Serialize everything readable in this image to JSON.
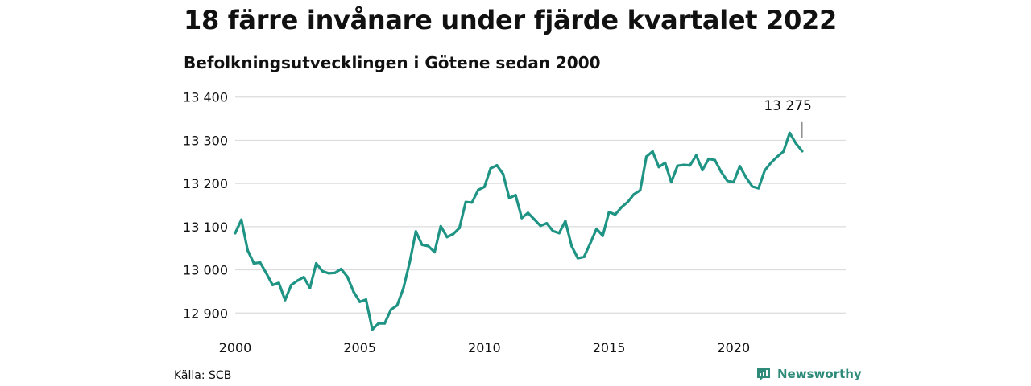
{
  "header": {
    "title": "18 färre invånare under fjärde kvartalet 2022",
    "subtitle": "Befolkningsutvecklingen i Götene sedan 2000"
  },
  "footer": {
    "source": "Källa: SCB",
    "brand": "Newsworthy"
  },
  "colors": {
    "line": "#1f9484",
    "grid": "#dcdcdc",
    "brand": "#2e8b7a"
  },
  "chart_data": {
    "type": "line",
    "title": "18 färre invånare under fjärde kvartalet 2022",
    "subtitle": "Befolkningsutvecklingen i Götene sedan 2000",
    "xlabel": "",
    "ylabel": "",
    "xlim": [
      2000,
      2024.5
    ],
    "ylim": [
      12880,
      13420
    ],
    "grid": true,
    "x_ticks": [
      {
        "value": 2000,
        "label": "2000"
      },
      {
        "value": 2005,
        "label": "2005"
      },
      {
        "value": 2010,
        "label": "2010"
      },
      {
        "value": 2015,
        "label": "2015"
      },
      {
        "value": 2020,
        "label": "2020"
      }
    ],
    "y_ticks": [
      {
        "value": 12900,
        "label": "12 900"
      },
      {
        "value": 13000,
        "label": "13 000"
      },
      {
        "value": 13100,
        "label": "13 100"
      },
      {
        "value": 13200,
        "label": "13 200"
      },
      {
        "value": 13300,
        "label": "13 300"
      },
      {
        "value": 13400,
        "label": "13 400"
      }
    ],
    "annotation": {
      "x": 2022.75,
      "y": 13275,
      "label": "13 275"
    },
    "series": [
      {
        "values": [
          [
            2000.0,
            13085
          ],
          [
            2000.25,
            13116
          ],
          [
            2000.5,
            13045
          ],
          [
            2000.75,
            13015
          ],
          [
            2001.0,
            13017
          ],
          [
            2001.25,
            12992
          ],
          [
            2001.5,
            12965
          ],
          [
            2001.75,
            12970
          ],
          [
            2002.0,
            12930
          ],
          [
            2002.25,
            12965
          ],
          [
            2002.5,
            12975
          ],
          [
            2002.75,
            12983
          ],
          [
            2003.0,
            12958
          ],
          [
            2003.25,
            13015
          ],
          [
            2003.5,
            12997
          ],
          [
            2003.75,
            12992
          ],
          [
            2004.0,
            12993
          ],
          [
            2004.25,
            13002
          ],
          [
            2004.5,
            12984
          ],
          [
            2004.75,
            12949
          ],
          [
            2005.0,
            12926
          ],
          [
            2005.25,
            12931
          ],
          [
            2005.5,
            12862
          ],
          [
            2005.75,
            12876
          ],
          [
            2006.0,
            12876
          ],
          [
            2006.25,
            12908
          ],
          [
            2006.5,
            12918
          ],
          [
            2006.75,
            12957
          ],
          [
            2007.0,
            13017
          ],
          [
            2007.25,
            13089
          ],
          [
            2007.5,
            13058
          ],
          [
            2007.75,
            13055
          ],
          [
            2008.0,
            13041
          ],
          [
            2008.25,
            13101
          ],
          [
            2008.5,
            13076
          ],
          [
            2008.75,
            13083
          ],
          [
            2009.0,
            13097
          ],
          [
            2009.25,
            13157
          ],
          [
            2009.5,
            13156
          ],
          [
            2009.75,
            13185
          ],
          [
            2010.0,
            13192
          ],
          [
            2010.25,
            13235
          ],
          [
            2010.5,
            13242
          ],
          [
            2010.75,
            13222
          ],
          [
            2011.0,
            13166
          ],
          [
            2011.25,
            13173
          ],
          [
            2011.5,
            13120
          ],
          [
            2011.75,
            13132
          ],
          [
            2012.0,
            13117
          ],
          [
            2012.25,
            13102
          ],
          [
            2012.5,
            13108
          ],
          [
            2012.75,
            13090
          ],
          [
            2013.0,
            13085
          ],
          [
            2013.25,
            13113
          ],
          [
            2013.5,
            13055
          ],
          [
            2013.75,
            13027
          ],
          [
            2014.0,
            13030
          ],
          [
            2014.25,
            13062
          ],
          [
            2014.5,
            13095
          ],
          [
            2014.75,
            13079
          ],
          [
            2015.0,
            13134
          ],
          [
            2015.25,
            13128
          ],
          [
            2015.5,
            13145
          ],
          [
            2015.75,
            13157
          ],
          [
            2016.0,
            13175
          ],
          [
            2016.25,
            13184
          ],
          [
            2016.5,
            13262
          ],
          [
            2016.75,
            13274
          ],
          [
            2017.0,
            13238
          ],
          [
            2017.25,
            13248
          ],
          [
            2017.5,
            13203
          ],
          [
            2017.75,
            13241
          ],
          [
            2018.0,
            13243
          ],
          [
            2018.25,
            13242
          ],
          [
            2018.5,
            13265
          ],
          [
            2018.75,
            13231
          ],
          [
            2019.0,
            13257
          ],
          [
            2019.25,
            13254
          ],
          [
            2019.5,
            13227
          ],
          [
            2019.75,
            13206
          ],
          [
            2020.0,
            13203
          ],
          [
            2020.25,
            13240
          ],
          [
            2020.5,
            13214
          ],
          [
            2020.75,
            13193
          ],
          [
            2021.0,
            13189
          ],
          [
            2021.25,
            13230
          ],
          [
            2021.5,
            13248
          ],
          [
            2021.75,
            13262
          ],
          [
            2022.0,
            13274
          ],
          [
            2022.25,
            13317
          ],
          [
            2022.5,
            13293
          ],
          [
            2022.75,
            13275
          ]
        ]
      }
    ]
  }
}
